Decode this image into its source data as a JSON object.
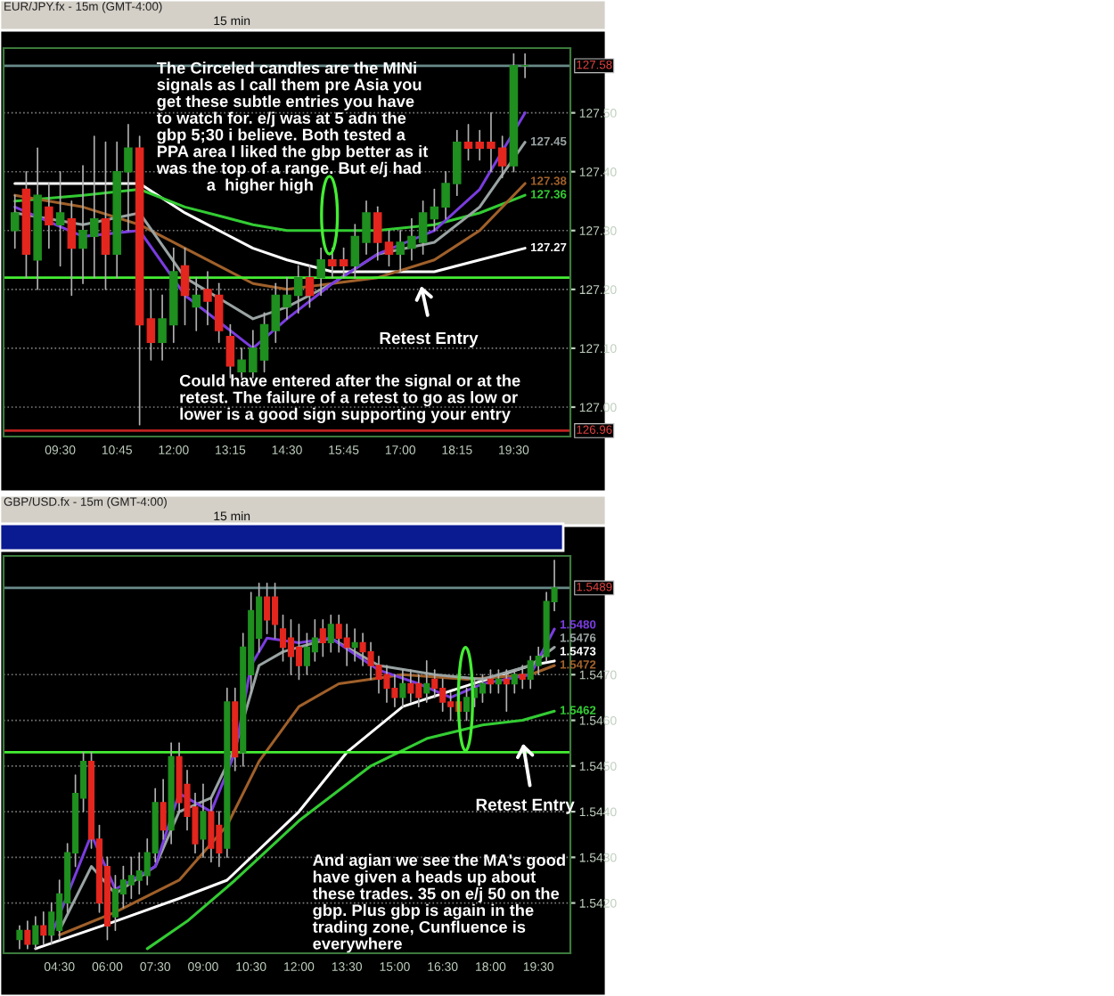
{
  "chart_data": [
    {
      "type": "candlestick",
      "title": "EUR/JPY.fx - 15m (GMT-4:00)",
      "x": [
        8.5,
        8.75,
        9,
        9.25,
        9.5,
        9.75,
        10,
        10.25,
        10.5,
        10.75,
        11,
        11.25,
        11.5,
        11.75,
        12,
        12.25,
        12.5,
        12.75,
        13,
        13.25,
        13.5,
        13.75,
        14,
        14.25,
        14.5,
        14.75,
        15,
        15.25,
        15.5,
        15.75,
        16,
        16.25,
        16.5,
        16.75,
        17,
        17.25,
        17.5,
        17.75,
        18,
        18.25,
        18.5,
        18.75,
        19,
        19.25,
        19.5,
        19.75
      ],
      "ohlc": [
        [
          127.3,
          127.36,
          127.27,
          127.33
        ],
        [
          127.37,
          127.4,
          127.22,
          127.26
        ],
        [
          127.25,
          127.44,
          127.2,
          127.36
        ],
        [
          127.34,
          127.38,
          127.27,
          127.31
        ],
        [
          127.31,
          127.4,
          127.24,
          127.33
        ],
        [
          127.32,
          127.35,
          127.19,
          127.27
        ],
        [
          127.27,
          127.41,
          127.21,
          127.3
        ],
        [
          127.29,
          127.46,
          127.22,
          127.32
        ],
        [
          127.32,
          127.45,
          127.2,
          127.26
        ],
        [
          127.26,
          127.45,
          127.22,
          127.4
        ],
        [
          127.4,
          127.48,
          127.3,
          127.44
        ],
        [
          127.44,
          127.46,
          126.97,
          127.14
        ],
        [
          127.15,
          127.2,
          127.08,
          127.11
        ],
        [
          127.11,
          127.19,
          127.08,
          127.15
        ],
        [
          127.14,
          127.27,
          127.11,
          127.23
        ],
        [
          127.24,
          127.27,
          127.14,
          127.19
        ],
        [
          127.17,
          127.22,
          127.13,
          127.19
        ],
        [
          127.2,
          127.23,
          127.14,
          127.18
        ],
        [
          127.19,
          127.21,
          127.11,
          127.13
        ],
        [
          127.12,
          127.14,
          127.05,
          127.07
        ],
        [
          127.06,
          127.1,
          127.05,
          127.08
        ],
        [
          127.06,
          127.13,
          127.05,
          127.1
        ],
        [
          127.08,
          127.16,
          127.06,
          127.14
        ],
        [
          127.13,
          127.21,
          127.11,
          127.19
        ],
        [
          127.17,
          127.22,
          127.15,
          127.19
        ],
        [
          127.19,
          127.24,
          127.16,
          127.22
        ],
        [
          127.22,
          127.24,
          127.17,
          127.19
        ],
        [
          127.22,
          127.27,
          127.19,
          127.25
        ],
        [
          127.25,
          127.27,
          127.22,
          127.24
        ],
        [
          127.25,
          127.27,
          127.22,
          127.24
        ],
        [
          127.24,
          127.31,
          127.22,
          127.29
        ],
        [
          127.28,
          127.35,
          127.26,
          127.33
        ],
        [
          127.33,
          127.34,
          127.25,
          127.28
        ],
        [
          127.28,
          127.3,
          127.24,
          127.26
        ],
        [
          127.26,
          127.3,
          127.23,
          127.28
        ],
        [
          127.27,
          127.32,
          127.25,
          127.29
        ],
        [
          127.28,
          127.35,
          127.26,
          127.33
        ],
        [
          127.32,
          127.37,
          127.3,
          127.34
        ],
        [
          127.34,
          127.4,
          127.32,
          127.38
        ],
        [
          127.38,
          127.47,
          127.36,
          127.45
        ],
        [
          127.45,
          127.48,
          127.42,
          127.44
        ],
        [
          127.45,
          127.47,
          127.42,
          127.44
        ],
        [
          127.45,
          127.5,
          127.4,
          127.44
        ],
        [
          127.44,
          127.46,
          127.39,
          127.41
        ],
        [
          127.41,
          127.6,
          127.4,
          127.58
        ],
        [
          127.58,
          127.6,
          127.56,
          127.58
        ]
      ],
      "series": [
        {
          "type": "line",
          "color": "#ffffff",
          "x": [
            8.5,
            10,
            11.25,
            12.25,
            13.75,
            14.5,
            15.5,
            16.5,
            17.75,
            18.75,
            19.75
          ],
          "values": [
            127.38,
            127.38,
            127.38,
            127.33,
            127.27,
            127.25,
            127.23,
            127.23,
            127.23,
            127.25,
            127.27
          ],
          "value_labels": [
            null,
            null,
            null,
            null,
            null,
            null,
            null,
            null,
            null,
            null,
            "127.27"
          ]
        },
        {
          "type": "line",
          "color": "#33cc33",
          "x": [
            8.5,
            10,
            11.25,
            12.25,
            13.75,
            14.5,
            15.5,
            16.5,
            17.75,
            18.75,
            19.75
          ],
          "values": [
            127.35,
            127.36,
            127.37,
            127.34,
            127.31,
            127.3,
            127.3,
            127.3,
            127.31,
            127.33,
            127.36
          ],
          "value_labels": [
            null,
            null,
            null,
            null,
            null,
            null,
            null,
            null,
            null,
            null,
            "127.36"
          ]
        },
        {
          "type": "line",
          "color": "#a0602a",
          "x": [
            8.5,
            10,
            11.25,
            12.25,
            13.75,
            14.5,
            15.5,
            16.5,
            17.75,
            18.75,
            19.75
          ],
          "values": [
            127.36,
            127.34,
            127.31,
            127.27,
            127.21,
            127.2,
            127.21,
            127.22,
            127.25,
            127.3,
            127.38
          ],
          "value_labels": [
            null,
            null,
            null,
            null,
            null,
            null,
            null,
            null,
            null,
            null,
            "127.38"
          ]
        },
        {
          "type": "line",
          "color": "#9aa3a3",
          "x": [
            8.5,
            10,
            11.25,
            12.25,
            13.75,
            14.5,
            15.5,
            16.5,
            17.75,
            18.75,
            19.75
          ],
          "values": [
            127.33,
            127.31,
            127.33,
            127.22,
            127.15,
            127.17,
            127.21,
            127.26,
            127.28,
            127.34,
            127.45
          ],
          "value_labels": [
            null,
            null,
            null,
            null,
            null,
            null,
            null,
            null,
            null,
            null,
            "127.45"
          ]
        },
        {
          "type": "line",
          "color": "#7a3ce0",
          "x": [
            8.5,
            10,
            11.25,
            12.25,
            13.75,
            14.5,
            15.5,
            16.5,
            17.75,
            18.75,
            19.75
          ],
          "values": [
            127.34,
            127.29,
            127.3,
            127.19,
            127.1,
            127.15,
            127.21,
            127.26,
            127.3,
            127.37,
            127.5
          ]
        }
      ],
      "xlim": [
        8.25,
        20.75
      ],
      "ylim": [
        126.95,
        127.61
      ],
      "xticks": [
        {
          "value": 9.5,
          "label": "09:30"
        },
        {
          "value": 10.75,
          "label": "10:45"
        },
        {
          "value": 12,
          "label": "12:00"
        },
        {
          "value": 13.25,
          "label": "13:15"
        },
        {
          "value": 14.5,
          "label": "14:30"
        },
        {
          "value": 15.75,
          "label": "15:45"
        },
        {
          "value": 17,
          "label": "17:00"
        },
        {
          "value": 18.25,
          "label": "18:15"
        },
        {
          "value": 19.5,
          "label": "19:30"
        }
      ],
      "yticks": [
        {
          "value": 127.0,
          "label": "127.00"
        },
        {
          "value": 127.1,
          "label": "127.10"
        },
        {
          "value": 127.2,
          "label": "127.20"
        },
        {
          "value": 127.3,
          "label": "127.30"
        },
        {
          "value": 127.4,
          "label": "127.40"
        },
        {
          "value": 127.5,
          "label": "127.50"
        }
      ],
      "grid": "y",
      "ref_lines": [
        {
          "axis": "y",
          "value": 127.22,
          "color": "#44ee33"
        },
        {
          "axis": "y",
          "value": 127.58,
          "color": "#6a8a8a",
          "label": "127.58"
        },
        {
          "axis": "y",
          "value": 126.96,
          "color": "#c02020",
          "label": "126.96"
        }
      ],
      "annotations": [
        "15 min",
        "The Circeled candles are the MINi\nsignals as I call them pre Asia you\nget these subtle entries you have\nto watch for. e/j was at 5 adn the\ngbp 5;30 i believe. Both tested a\nPPA area I liked the gbp better as it\nwas the top of a range. But e/j had\n           a  higher high",
        "Could have entered after the signal or at the\nretest. The failure of a retest to go as low or\nlower is a good sign supporting your entry",
        "Retest Entry"
      ]
    },
    {
      "type": "candlestick",
      "title": "GBP/USD.fx - 15m (GMT-4:00)",
      "x": [
        3.25,
        3.5,
        3.75,
        4,
        4.25,
        4.5,
        4.75,
        5,
        5.25,
        5.5,
        5.75,
        6,
        6.25,
        6.5,
        6.75,
        7,
        7.25,
        7.5,
        7.75,
        8,
        8.25,
        8.5,
        8.75,
        9,
        9.25,
        9.5,
        9.75,
        10,
        10.25,
        10.5,
        10.75,
        11,
        11.25,
        11.5,
        11.75,
        12,
        12.25,
        12.5,
        12.75,
        13,
        13.25,
        13.5,
        13.75,
        14,
        14.25,
        14.5,
        14.75,
        15,
        15.25,
        15.5,
        15.75,
        16,
        16.25,
        16.5,
        16.75,
        17,
        17.25,
        17.5,
        17.75,
        18,
        18.25,
        18.5,
        18.75,
        19,
        19.25,
        19.5,
        19.75,
        20
      ],
      "ohlc": [
        [
          1.5412,
          1.5415,
          1.541,
          1.5414
        ],
        [
          1.5414,
          1.5416,
          1.541,
          1.5411
        ],
        [
          1.5411,
          1.5417,
          1.541,
          1.5415
        ],
        [
          1.5415,
          1.5418,
          1.5411,
          1.5413
        ],
        [
          1.5413,
          1.542,
          1.5411,
          1.5418
        ],
        [
          1.5414,
          1.5425,
          1.5412,
          1.5422
        ],
        [
          1.542,
          1.5433,
          1.5418,
          1.5431
        ],
        [
          1.5431,
          1.5448,
          1.5428,
          1.5444
        ],
        [
          1.5443,
          1.5453,
          1.544,
          1.5451
        ],
        [
          1.5451,
          1.5453,
          1.5432,
          1.5434
        ],
        [
          1.5434,
          1.5437,
          1.5418,
          1.542
        ],
        [
          1.5428,
          1.543,
          1.5412,
          1.5415
        ],
        [
          1.5417,
          1.5426,
          1.5414,
          1.5423
        ],
        [
          1.5422,
          1.5428,
          1.5419,
          1.5425
        ],
        [
          1.5424,
          1.543,
          1.5421,
          1.5426
        ],
        [
          1.5425,
          1.5431,
          1.5422,
          1.5427
        ],
        [
          1.5426,
          1.5434,
          1.5424,
          1.5431
        ],
        [
          1.5431,
          1.5445,
          1.5429,
          1.5442
        ],
        [
          1.5442,
          1.5447,
          1.5434,
          1.5436
        ],
        [
          1.5436,
          1.5455,
          1.5433,
          1.5452
        ],
        [
          1.5452,
          1.5455,
          1.544,
          1.5442
        ],
        [
          1.5446,
          1.5449,
          1.5436,
          1.5439
        ],
        [
          1.5441,
          1.5444,
          1.5431,
          1.5433
        ],
        [
          1.5434,
          1.5446,
          1.543,
          1.544
        ],
        [
          1.544,
          1.5443,
          1.5429,
          1.5432
        ],
        [
          1.5437,
          1.544,
          1.5428,
          1.5431
        ],
        [
          1.5432,
          1.5467,
          1.543,
          1.5464
        ],
        [
          1.5464,
          1.5467,
          1.5449,
          1.5452
        ],
        [
          1.5453,
          1.5479,
          1.545,
          1.5476
        ],
        [
          1.547,
          1.5488,
          1.5466,
          1.5484
        ],
        [
          1.5478,
          1.549,
          1.5475,
          1.5487
        ],
        [
          1.5487,
          1.549,
          1.5479,
          1.5482
        ],
        [
          1.5487,
          1.549,
          1.5478,
          1.5481
        ],
        [
          1.548,
          1.5483,
          1.5473,
          1.5476
        ],
        [
          1.5478,
          1.5482,
          1.547,
          1.5474
        ],
        [
          1.5476,
          1.5481,
          1.5469,
          1.5472
        ],
        [
          1.5472,
          1.5479,
          1.547,
          1.5476
        ],
        [
          1.5475,
          1.5482,
          1.5473,
          1.5478
        ],
        [
          1.548,
          1.5482,
          1.5474,
          1.5477
        ],
        [
          1.5477,
          1.5483,
          1.5475,
          1.5481
        ],
        [
          1.5481,
          1.5483,
          1.5475,
          1.5478
        ],
        [
          1.5478,
          1.5481,
          1.5472,
          1.5476
        ],
        [
          1.5476,
          1.548,
          1.5473,
          1.5477
        ],
        [
          1.5477,
          1.5479,
          1.5472,
          1.5475
        ],
        [
          1.5475,
          1.5477,
          1.5469,
          1.5472
        ],
        [
          1.5472,
          1.5474,
          1.5466,
          1.5469
        ],
        [
          1.547,
          1.5472,
          1.5464,
          1.5467
        ],
        [
          1.5467,
          1.547,
          1.5463,
          1.5465
        ],
        [
          1.5465,
          1.5471,
          1.5463,
          1.5468
        ],
        [
          1.5468,
          1.5471,
          1.5464,
          1.5466
        ],
        [
          1.5468,
          1.547,
          1.5463,
          1.5465
        ],
        [
          1.5466,
          1.5473,
          1.5464,
          1.5468
        ],
        [
          1.5469,
          1.5471,
          1.5465,
          1.5467
        ],
        [
          1.5467,
          1.5469,
          1.5462,
          1.5464
        ],
        [
          1.5464,
          1.5466,
          1.546,
          1.5463
        ],
        [
          1.5464,
          1.5466,
          1.546,
          1.5462
        ],
        [
          1.5462,
          1.5467,
          1.546,
          1.5465
        ],
        [
          1.5465,
          1.5469,
          1.5463,
          1.5467
        ],
        [
          1.5466,
          1.547,
          1.5464,
          1.5468
        ],
        [
          1.5469,
          1.5471,
          1.5466,
          1.5468
        ],
        [
          1.5468,
          1.5471,
          1.5466,
          1.5469
        ],
        [
          1.5469,
          1.5471,
          1.5462,
          1.5468
        ],
        [
          1.5468,
          1.5471,
          1.5466,
          1.547
        ],
        [
          1.547,
          1.5472,
          1.5467,
          1.5469
        ],
        [
          1.5469,
          1.5474,
          1.5467,
          1.5473
        ],
        [
          1.5472,
          1.5476,
          1.547,
          1.5474
        ],
        [
          1.5474,
          1.5488,
          1.5473,
          1.5486
        ],
        [
          1.5486,
          1.5495,
          1.5484,
          1.5489
        ]
      ],
      "series": [
        {
          "type": "line",
          "color": "#ffffff",
          "x": [
            3.75,
            6.25,
            8.25,
            9.75,
            12,
            13.5,
            15.25,
            17,
            19.25,
            20
          ],
          "values": [
            1.541,
            1.5416,
            1.5421,
            1.5425,
            1.544,
            1.5453,
            1.5463,
            1.5467,
            1.5472,
            1.5473
          ],
          "value_labels": [
            null,
            null,
            null,
            null,
            null,
            null,
            null,
            null,
            null,
            "1.5473"
          ]
        },
        {
          "type": "line",
          "color": "#33cc33",
          "x": [
            7.25,
            8.5,
            10,
            12,
            14.25,
            16,
            17.75,
            19,
            20
          ],
          "values": [
            1.541,
            1.5416,
            1.5425,
            1.5438,
            1.545,
            1.5456,
            1.5459,
            1.546,
            1.5462
          ],
          "value_labels": [
            null,
            null,
            null,
            null,
            null,
            null,
            null,
            null,
            "1.5462"
          ]
        },
        {
          "type": "line",
          "color": "#a0602a",
          "x": [
            4.5,
            6.25,
            8.25,
            9.75,
            10.75,
            12,
            13.25,
            15.25,
            17.25,
            19.25,
            20
          ],
          "values": [
            1.5413,
            1.5418,
            1.5425,
            1.5437,
            1.5451,
            1.5463,
            1.5468,
            1.547,
            1.5469,
            1.547,
            1.5472
          ],
          "value_labels": [
            null,
            null,
            null,
            null,
            null,
            null,
            null,
            null,
            null,
            null,
            "1.5472"
          ]
        },
        {
          "type": "line",
          "color": "#9aa3a3",
          "x": [
            4.5,
            5.5,
            6.25,
            7.5,
            8.25,
            9.25,
            10,
            10.75,
            11.5,
            13,
            14.5,
            16.25,
            17.75,
            19.25,
            20
          ],
          "values": [
            1.5414,
            1.5428,
            1.5422,
            1.5428,
            1.544,
            1.5443,
            1.5454,
            1.5472,
            1.5475,
            1.5478,
            1.5472,
            1.547,
            1.5469,
            1.5472,
            1.5476
          ],
          "value_labels": [
            null,
            null,
            null,
            null,
            null,
            null,
            null,
            null,
            null,
            null,
            null,
            null,
            null,
            null,
            "1.5476"
          ]
        },
        {
          "type": "line",
          "color": "#7a3ce0",
          "x": [
            4.25,
            5.5,
            6.25,
            7.5,
            8.25,
            9.25,
            10,
            10.5,
            11,
            12,
            13,
            14.5,
            15.75,
            16.75,
            17.75,
            19.25,
            20
          ],
          "values": [
            1.5413,
            1.5435,
            1.5423,
            1.5428,
            1.5444,
            1.544,
            1.5453,
            1.5472,
            1.5478,
            1.5477,
            1.5478,
            1.5471,
            1.5468,
            1.5465,
            1.5468,
            1.547,
            1.548
          ],
          "value_labels": [
            null,
            null,
            null,
            null,
            null,
            null,
            null,
            null,
            null,
            null,
            null,
            null,
            null,
            null,
            null,
            null,
            "1.5480"
          ]
        }
      ],
      "xlim": [
        2.75,
        20.5
      ],
      "ylim": [
        1.5409,
        1.5496
      ],
      "xticks": [
        {
          "value": 4.5,
          "label": "04:30"
        },
        {
          "value": 6,
          "label": "06:00"
        },
        {
          "value": 7.5,
          "label": "07:30"
        },
        {
          "value": 9,
          "label": "09:00"
        },
        {
          "value": 10.5,
          "label": "10:30"
        },
        {
          "value": 12,
          "label": "12:00"
        },
        {
          "value": 13.5,
          "label": "13:30"
        },
        {
          "value": 15,
          "label": "15:00"
        },
        {
          "value": 16.5,
          "label": "16:30"
        },
        {
          "value": 18,
          "label": "18:00"
        },
        {
          "value": 19.5,
          "label": "19:30"
        }
      ],
      "yticks": [
        {
          "value": 1.542,
          "label": "1.5420"
        },
        {
          "value": 1.543,
          "label": "1.5430"
        },
        {
          "value": 1.544,
          "label": "1.5440"
        },
        {
          "value": 1.545,
          "label": "1.5450"
        },
        {
          "value": 1.546,
          "label": "1.5460"
        },
        {
          "value": 1.547,
          "label": "1.5470"
        }
      ],
      "grid": "y",
      "ref_lines": [
        {
          "axis": "y",
          "value": 1.5453,
          "color": "#44ee33"
        },
        {
          "axis": "y",
          "value": 1.5489,
          "color": "#6a8a8a",
          "label": "1.5489"
        }
      ],
      "annotations": [
        "15 min",
        "And agian we see the MA's good\nhave given a heads up about\nthese trades. 35 on e/j 50 on the\ngbp. Plus gbp is again in the\ntrading zone, Cunfluence is\neverywhere",
        "Retest Entry"
      ]
    }
  ]
}
